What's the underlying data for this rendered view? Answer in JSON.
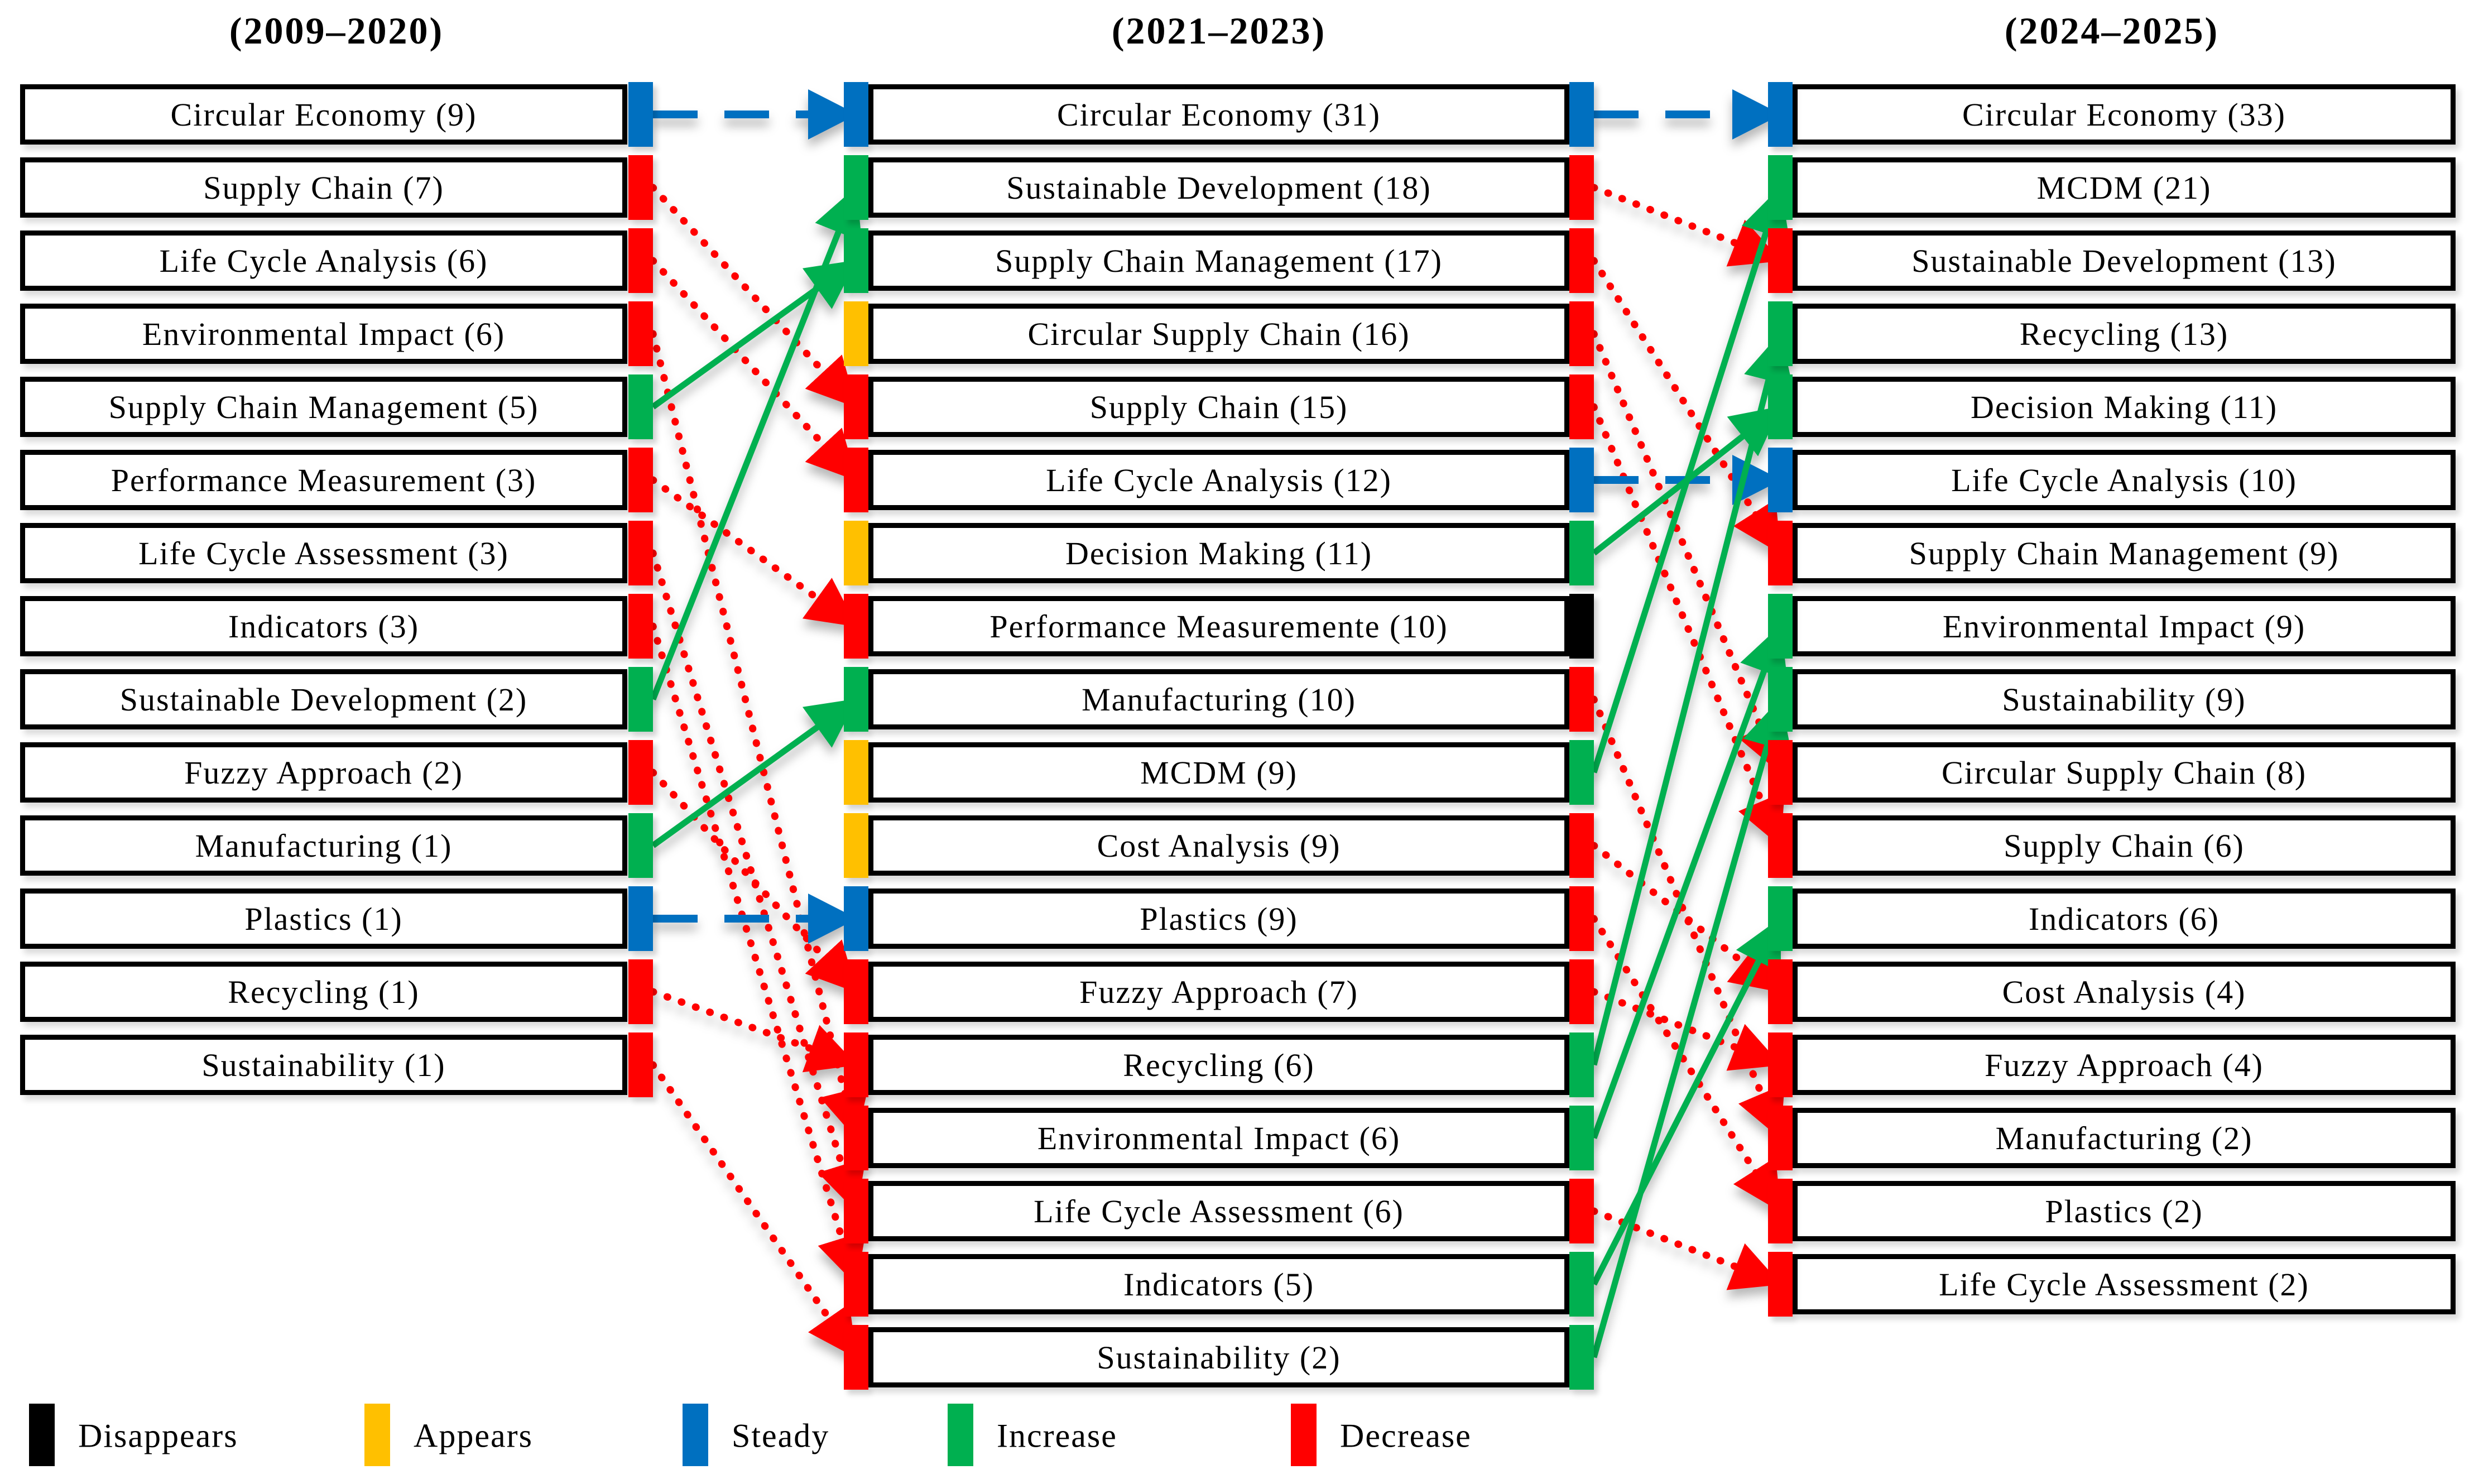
{
  "periods": [
    {
      "label": "(2009–2020)",
      "boxes": [
        {
          "row": 1,
          "label": "Circular Economy (9)",
          "out": "steady"
        },
        {
          "row": 2,
          "label": "Supply Chain (7)",
          "out": "decrease"
        },
        {
          "row": 3,
          "label": "Life Cycle Analysis (6)",
          "out": "decrease"
        },
        {
          "row": 4,
          "label": "Environmental Impact (6)",
          "out": "decrease"
        },
        {
          "row": 5,
          "label": "Supply Chain Management (5)",
          "out": "increase"
        },
        {
          "row": 6,
          "label": "Performance Measurement (3)",
          "out": "decrease"
        },
        {
          "row": 7,
          "label": "Life Cycle Assessment (3)",
          "out": "decrease"
        },
        {
          "row": 8,
          "label": "Indicators (3)",
          "out": "decrease"
        },
        {
          "row": 9,
          "label": "Sustainable Development (2)",
          "out": "increase"
        },
        {
          "row": 10,
          "label": "Fuzzy Approach (2)",
          "out": "decrease"
        },
        {
          "row": 11,
          "label": "Manufacturing (1)",
          "out": "increase"
        },
        {
          "row": 12,
          "label": "Plastics (1)",
          "out": "steady"
        },
        {
          "row": 13,
          "label": "Recycling (1)",
          "out": "decrease"
        },
        {
          "row": 14,
          "label": "Sustainability (1)",
          "out": "decrease"
        }
      ]
    },
    {
      "label": "(2021–2023)",
      "boxes": [
        {
          "row": 1,
          "label": "Circular Economy (31)",
          "in": "steady",
          "out": "steady"
        },
        {
          "row": 2,
          "label": "Sustainable Development (18)",
          "in": "increase",
          "out": "decrease"
        },
        {
          "row": 3,
          "label": "Supply Chain Management (17)",
          "in": "increase",
          "out": "decrease"
        },
        {
          "row": 4,
          "label": "Circular Supply Chain (16)",
          "in": "appears",
          "out": "decrease"
        },
        {
          "row": 5,
          "label": "Supply Chain (15)",
          "in": "decrease",
          "out": "decrease"
        },
        {
          "row": 6,
          "label": "Life Cycle Analysis (12)",
          "in": "decrease",
          "out": "steady"
        },
        {
          "row": 7,
          "label": "Decision Making (11)",
          "in": "appears",
          "out": "increase"
        },
        {
          "row": 8,
          "label": "Performance Measuremente (10)",
          "in": "decrease",
          "out": "disappears"
        },
        {
          "row": 9,
          "label": "Manufacturing (10)",
          "in": "increase",
          "out": "decrease"
        },
        {
          "row": 10,
          "label": "MCDM (9)",
          "in": "appears",
          "out": "increase"
        },
        {
          "row": 11,
          "label": "Cost Analysis (9)",
          "in": "appears",
          "out": "decrease"
        },
        {
          "row": 12,
          "label": "Plastics (9)",
          "in": "steady",
          "out": "decrease"
        },
        {
          "row": 13,
          "label": "Fuzzy Approach (7)",
          "in": "decrease",
          "out": "decrease"
        },
        {
          "row": 14,
          "label": "Recycling (6)",
          "in": "decrease",
          "out": "increase"
        },
        {
          "row": 15,
          "label": "Environmental Impact (6)",
          "in": "decrease",
          "out": "increase"
        },
        {
          "row": 16,
          "label": "Life Cycle Assessment (6)",
          "in": "decrease",
          "out": "decrease"
        },
        {
          "row": 17,
          "label": "Indicators (5)",
          "in": "decrease",
          "out": "increase"
        },
        {
          "row": 18,
          "label": "Sustainability (2)",
          "in": "decrease",
          "out": "increase"
        }
      ]
    },
    {
      "label": "(2024–2025)",
      "boxes": [
        {
          "row": 1,
          "label": "Circular Economy (33)",
          "in": "steady"
        },
        {
          "row": 2,
          "label": "MCDM (21)",
          "in": "increase"
        },
        {
          "row": 3,
          "label": "Sustainable Development (13)",
          "in": "decrease"
        },
        {
          "row": 4,
          "label": "Recycling (13)",
          "in": "increase"
        },
        {
          "row": 5,
          "label": "Decision Making (11)",
          "in": "increase"
        },
        {
          "row": 6,
          "label": "Life Cycle Analysis (10)",
          "in": "steady"
        },
        {
          "row": 7,
          "label": "Supply Chain Management (9)",
          "in": "decrease"
        },
        {
          "row": 8,
          "label": "Environmental Impact (9)",
          "in": "increase"
        },
        {
          "row": 9,
          "label": "Sustainability (9)",
          "in": "increase"
        },
        {
          "row": 10,
          "label": "Circular Supply Chain (8)",
          "in": "decrease"
        },
        {
          "row": 11,
          "label": "Supply Chain (6)",
          "in": "decrease"
        },
        {
          "row": 12,
          "label": "Indicators (6)",
          "in": "increase"
        },
        {
          "row": 13,
          "label": "Cost Analysis (4)",
          "in": "decrease"
        },
        {
          "row": 14,
          "label": "Fuzzy Approach (4)",
          "in": "decrease"
        },
        {
          "row": 15,
          "label": "Manufacturing (2)",
          "in": "decrease"
        },
        {
          "row": 16,
          "label": "Plastics (2)",
          "in": "decrease"
        },
        {
          "row": 17,
          "label": "Life Cycle Assessment (2)",
          "in": "decrease"
        }
      ]
    }
  ],
  "flows": [
    {
      "stage": 0,
      "from_row": 1,
      "to_row": 1,
      "type": "steady"
    },
    {
      "stage": 0,
      "from_row": 2,
      "to_row": 5,
      "type": "decrease"
    },
    {
      "stage": 0,
      "from_row": 3,
      "to_row": 6,
      "type": "decrease"
    },
    {
      "stage": 0,
      "from_row": 4,
      "to_row": 15,
      "type": "decrease"
    },
    {
      "stage": 0,
      "from_row": 5,
      "to_row": 3,
      "type": "increase"
    },
    {
      "stage": 0,
      "from_row": 6,
      "to_row": 8,
      "type": "decrease"
    },
    {
      "stage": 0,
      "from_row": 7,
      "to_row": 16,
      "type": "decrease"
    },
    {
      "stage": 0,
      "from_row": 8,
      "to_row": 17,
      "type": "decrease"
    },
    {
      "stage": 0,
      "from_row": 9,
      "to_row": 2,
      "type": "increase"
    },
    {
      "stage": 0,
      "from_row": 10,
      "to_row": 13,
      "type": "decrease"
    },
    {
      "stage": 0,
      "from_row": 11,
      "to_row": 9,
      "type": "increase"
    },
    {
      "stage": 0,
      "from_row": 12,
      "to_row": 12,
      "type": "steady"
    },
    {
      "stage": 0,
      "from_row": 13,
      "to_row": 14,
      "type": "decrease"
    },
    {
      "stage": 0,
      "from_row": 14,
      "to_row": 18,
      "type": "decrease"
    },
    {
      "stage": 1,
      "from_row": 1,
      "to_row": 1,
      "type": "steady"
    },
    {
      "stage": 1,
      "from_row": 2,
      "to_row": 3,
      "type": "decrease"
    },
    {
      "stage": 1,
      "from_row": 3,
      "to_row": 7,
      "type": "decrease"
    },
    {
      "stage": 1,
      "from_row": 4,
      "to_row": 10,
      "type": "decrease"
    },
    {
      "stage": 1,
      "from_row": 5,
      "to_row": 11,
      "type": "decrease"
    },
    {
      "stage": 1,
      "from_row": 6,
      "to_row": 6,
      "type": "steady"
    },
    {
      "stage": 1,
      "from_row": 7,
      "to_row": 5,
      "type": "increase"
    },
    {
      "stage": 1,
      "from_row": 9,
      "to_row": 15,
      "type": "decrease"
    },
    {
      "stage": 1,
      "from_row": 10,
      "to_row": 2,
      "type": "increase"
    },
    {
      "stage": 1,
      "from_row": 11,
      "to_row": 13,
      "type": "decrease"
    },
    {
      "stage": 1,
      "from_row": 12,
      "to_row": 16,
      "type": "decrease"
    },
    {
      "stage": 1,
      "from_row": 13,
      "to_row": 14,
      "type": "decrease"
    },
    {
      "stage": 1,
      "from_row": 14,
      "to_row": 4,
      "type": "increase"
    },
    {
      "stage": 1,
      "from_row": 15,
      "to_row": 8,
      "type": "increase"
    },
    {
      "stage": 1,
      "from_row": 16,
      "to_row": 17,
      "type": "decrease"
    },
    {
      "stage": 1,
      "from_row": 17,
      "to_row": 12,
      "type": "increase"
    },
    {
      "stage": 1,
      "from_row": 18,
      "to_row": 9,
      "type": "increase"
    }
  ],
  "legend": [
    {
      "key": "disappears",
      "label": "Disappears"
    },
    {
      "key": "appears",
      "label": "Appears"
    },
    {
      "key": "steady",
      "label": "Steady"
    },
    {
      "key": "increase",
      "label": "Increase"
    },
    {
      "key": "decrease",
      "label": "Decrease"
    }
  ],
  "colors": {
    "disappears": "#000000",
    "appears": "#FFC000",
    "steady": "#0070C0",
    "increase": "#00B050",
    "decrease": "#FF0000"
  }
}
